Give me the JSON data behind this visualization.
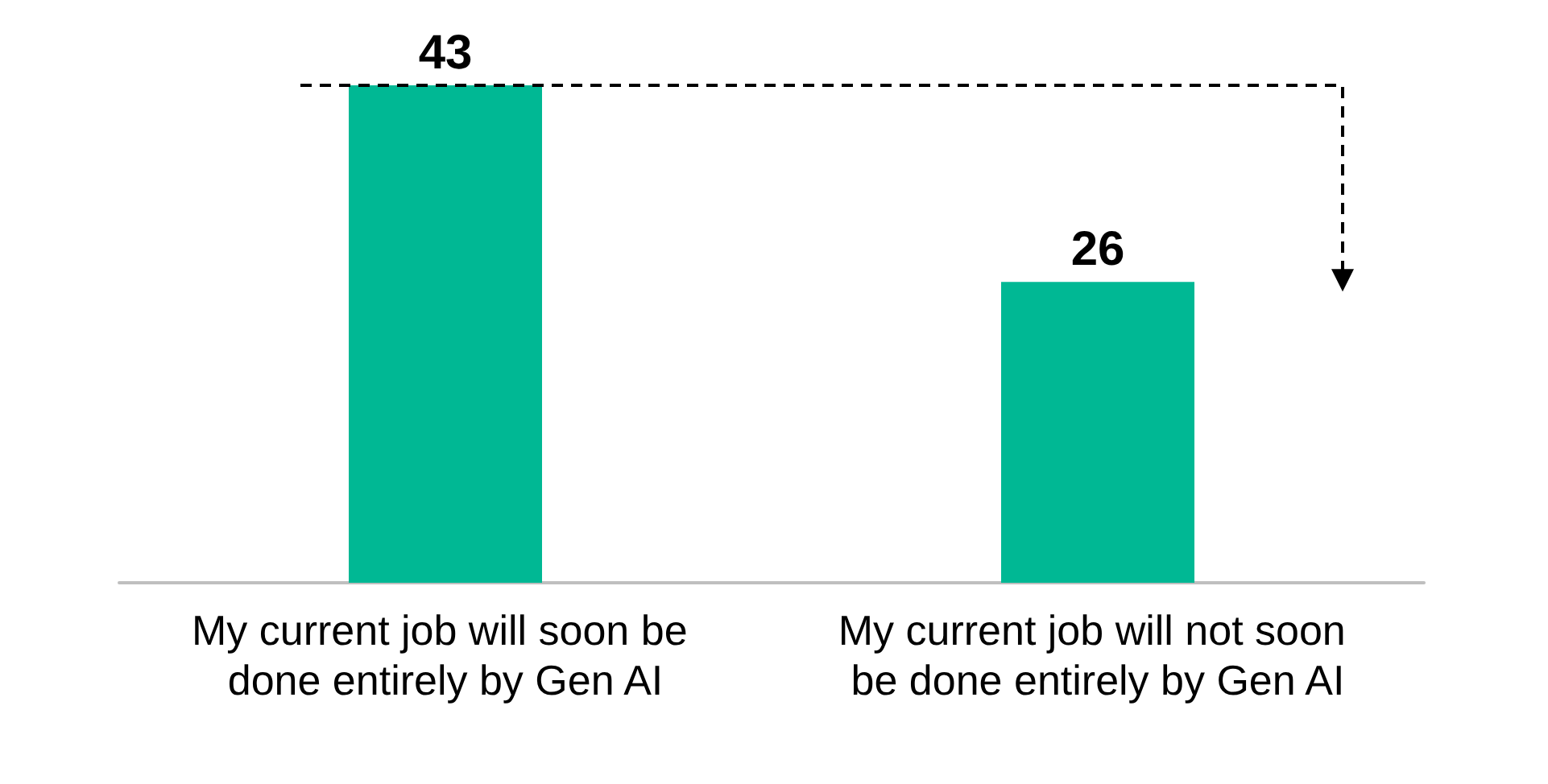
{
  "chart_data": {
    "type": "bar",
    "categories": [
      "My current job will soon be done entirely by Gen AI",
      "My current job will not soon be done entirely by Gen AI"
    ],
    "values": [
      43,
      26
    ],
    "color": "#00b894",
    "data_labels": true
  }
}
